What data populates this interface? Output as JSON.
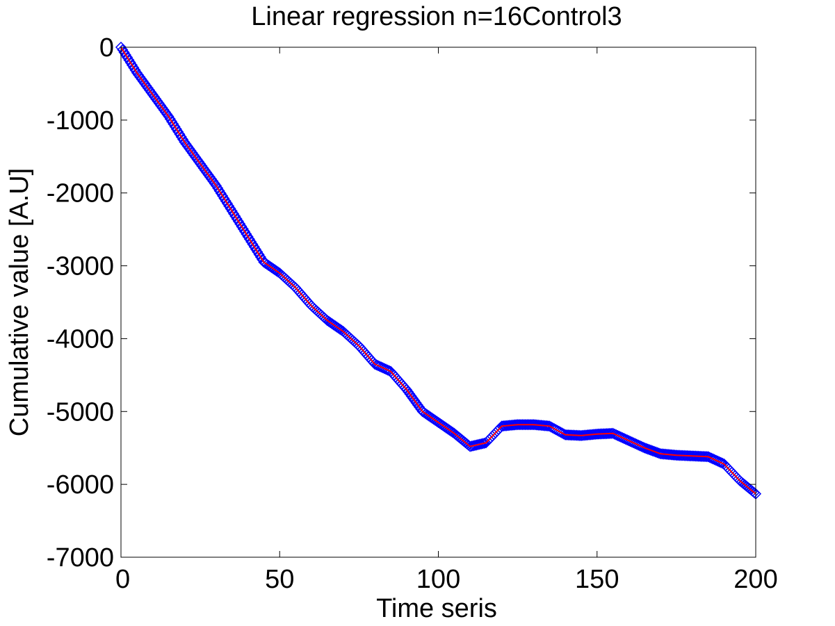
{
  "chart_data": {
    "type": "line",
    "title": "Linear regression n=16Control3",
    "xlabel": "Time seris",
    "ylabel": "Cumulative value [A.U]",
    "xlim": [
      0,
      200
    ],
    "ylim": [
      -7000,
      0
    ],
    "x_ticks": [
      0,
      50,
      100,
      150,
      200
    ],
    "y_ticks": [
      0,
      -1000,
      -2000,
      -3000,
      -4000,
      -5000,
      -6000,
      -7000
    ],
    "grid": false,
    "legend": "none",
    "series": [
      {
        "style": "markers",
        "color": "#0000ff",
        "marker": "diamond",
        "x": [
          0,
          5,
          10,
          15,
          20,
          25,
          30,
          35,
          40,
          45,
          50,
          55,
          60,
          65,
          70,
          75,
          80,
          85,
          90,
          95,
          100,
          105,
          110,
          115,
          120,
          125,
          130,
          135,
          140,
          145,
          150,
          155,
          160,
          165,
          170,
          175,
          180,
          185,
          190,
          195,
          200
        ],
        "y": [
          0,
          -350,
          -650,
          -950,
          -1300,
          -1600,
          -1900,
          -2250,
          -2600,
          -2950,
          -3100,
          -3300,
          -3550,
          -3750,
          -3900,
          -4100,
          -4350,
          -4450,
          -4700,
          -5000,
          -5150,
          -5300,
          -5480,
          -5430,
          -5200,
          -5180,
          -5180,
          -5200,
          -5320,
          -5330,
          -5310,
          -5300,
          -5400,
          -5500,
          -5580,
          -5600,
          -5610,
          -5620,
          -5720,
          -5950,
          -6130
        ]
      },
      {
        "style": "line",
        "color": "#ff0000",
        "x": [
          0,
          5,
          10,
          15,
          20,
          25,
          30,
          35,
          40,
          45,
          50,
          55,
          60,
          65,
          70,
          75,
          80,
          85,
          90,
          95,
          100,
          105,
          110,
          115,
          120,
          125,
          130,
          135,
          140,
          145,
          150,
          155,
          160,
          165,
          170,
          175,
          180,
          185,
          190,
          195,
          200
        ],
        "y": [
          0,
          -350,
          -650,
          -950,
          -1300,
          -1600,
          -1900,
          -2250,
          -2600,
          -2950,
          -3100,
          -3300,
          -3550,
          -3750,
          -3900,
          -4100,
          -4350,
          -4450,
          -4700,
          -5000,
          -5150,
          -5300,
          -5480,
          -5430,
          -5200,
          -5180,
          -5180,
          -5200,
          -5320,
          -5330,
          -5310,
          -5300,
          -5400,
          -5500,
          -5580,
          -5600,
          -5610,
          -5620,
          -5720,
          -5950,
          -6130
        ]
      }
    ]
  }
}
